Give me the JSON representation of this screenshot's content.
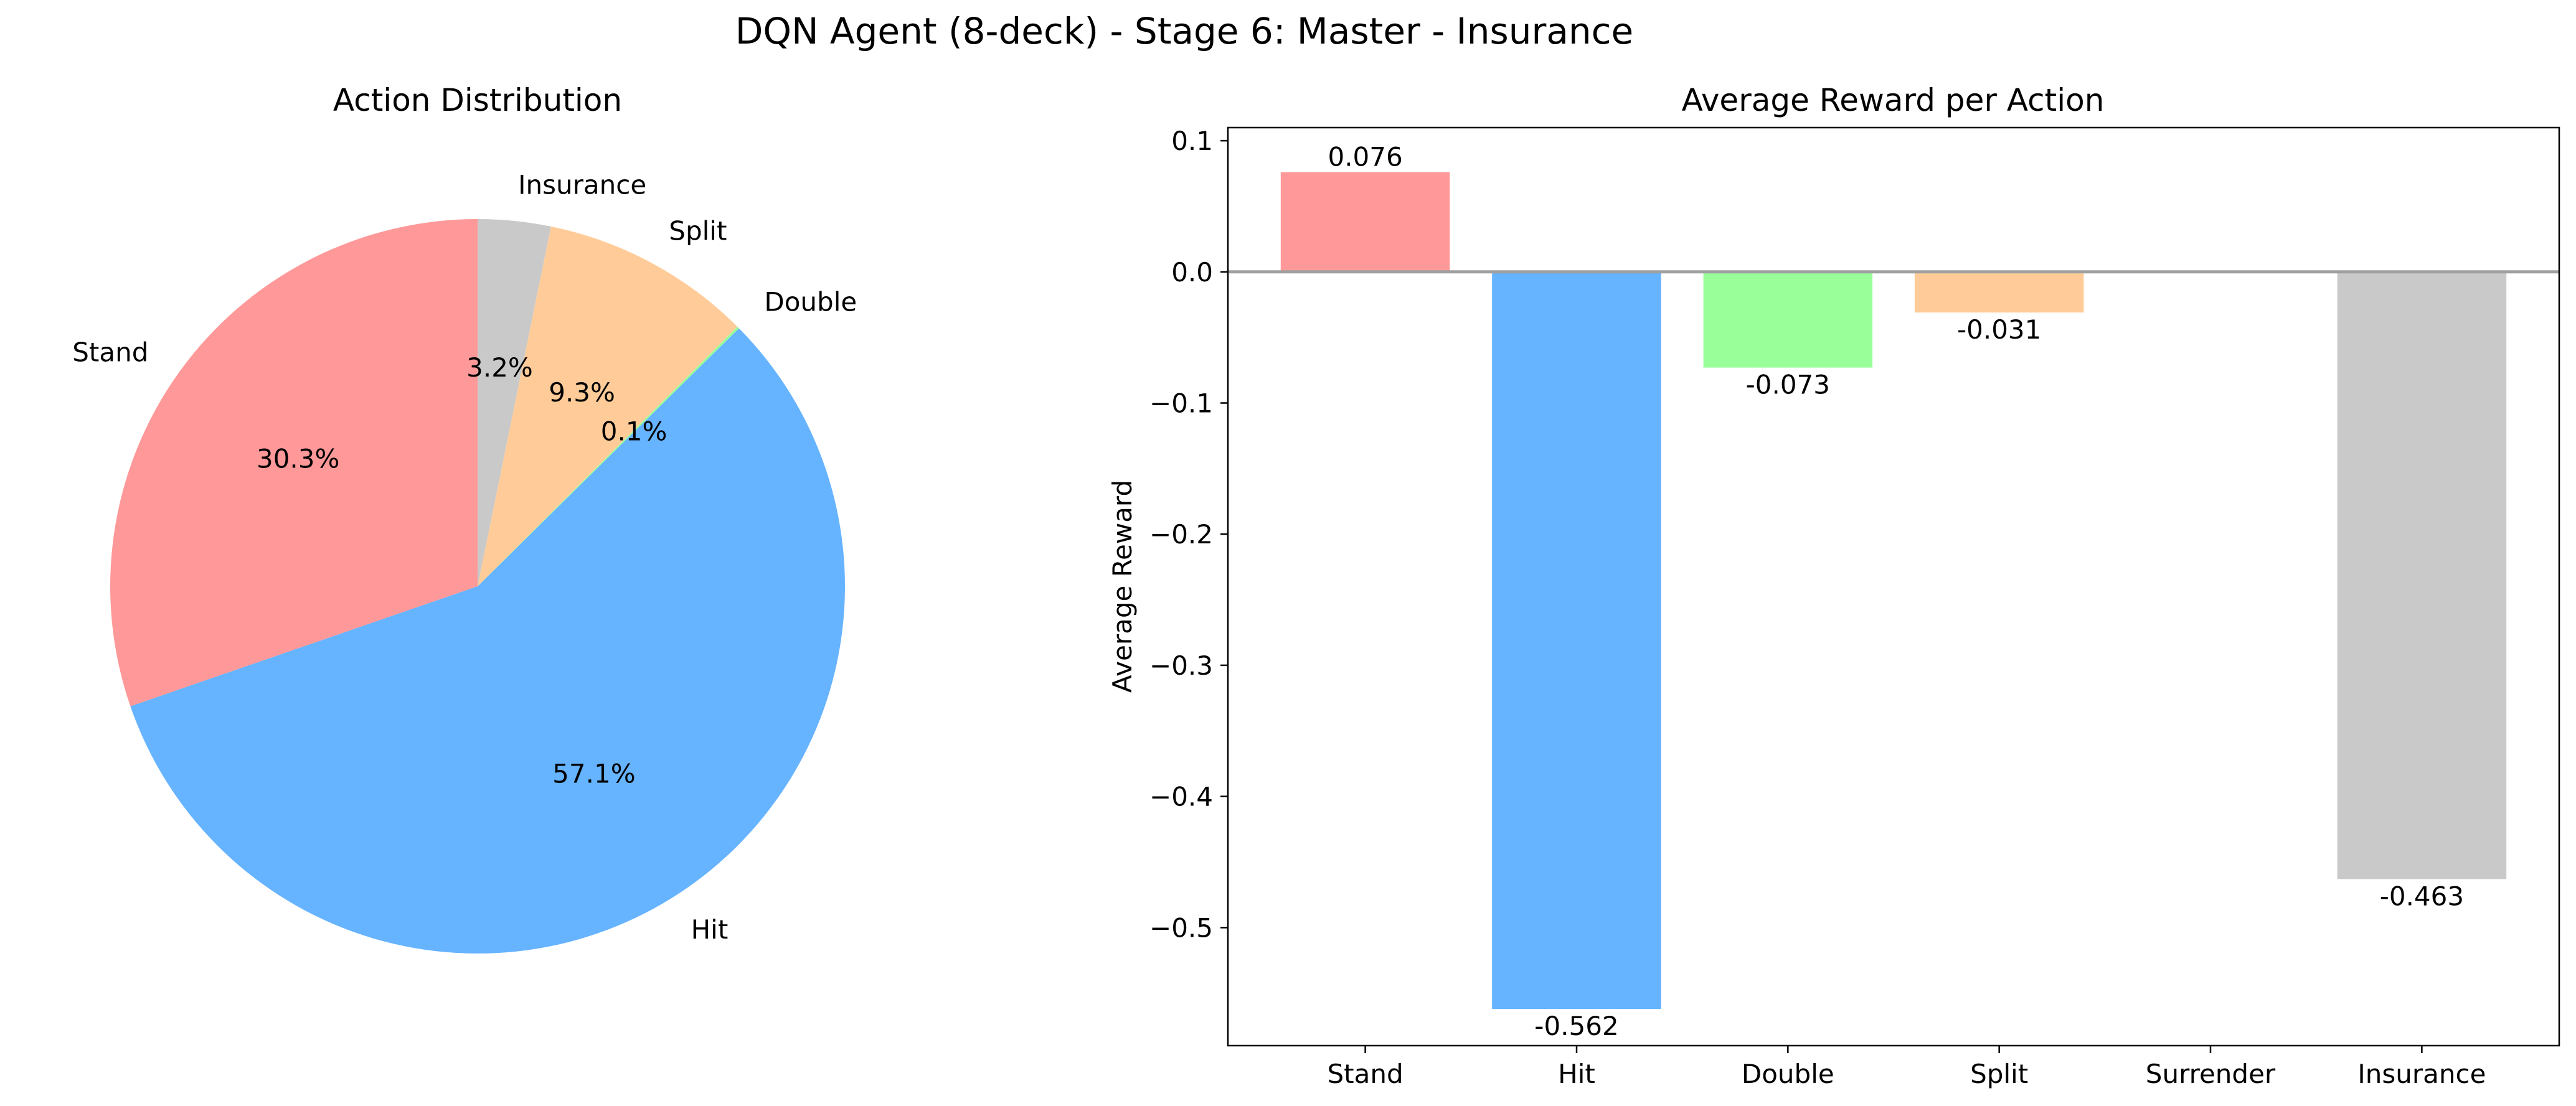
{
  "figure": {
    "suptitle": "DQN Agent (8-deck) - Stage 6: Master - Insurance"
  },
  "chart_data": [
    {
      "type": "pie",
      "title": "Action Distribution",
      "start_angle_deg": 90,
      "direction": "counterclockwise",
      "slices": [
        {
          "label": "Stand",
          "value": 30.3,
          "pct_label": "30.3%",
          "color": "#ff9999"
        },
        {
          "label": "Hit",
          "value": 57.1,
          "pct_label": "57.1%",
          "color": "#66b3ff"
        },
        {
          "label": "Double",
          "value": 0.1,
          "pct_label": "0.1%",
          "color": "#99ff99"
        },
        {
          "label": "Split",
          "value": 9.3,
          "pct_label": "9.3%",
          "color": "#ffcc99"
        },
        {
          "label": "Insurance",
          "value": 3.2,
          "pct_label": "3.2%",
          "color": "#c9c9c9"
        }
      ]
    },
    {
      "type": "bar",
      "title": "Average Reward per Action",
      "xlabel": "",
      "ylabel": "Average Reward",
      "categories": [
        "Stand",
        "Hit",
        "Double",
        "Split",
        "Surrender",
        "Insurance"
      ],
      "values": [
        0.076,
        -0.562,
        -0.073,
        -0.031,
        null,
        -0.463
      ],
      "value_labels": [
        "0.076",
        "-0.562",
        "-0.073",
        "-0.031",
        "",
        "-0.463"
      ],
      "colors": [
        "#ff9999",
        "#66b3ff",
        "#99ff99",
        "#ffcc99",
        "#ffffff",
        "#c9c9c9"
      ],
      "ylim": [
        -0.59,
        0.11
      ],
      "yticks": [
        0.1,
        0.0,
        -0.1,
        -0.2,
        -0.3,
        -0.4,
        -0.5
      ],
      "ytick_labels": [
        "0.1",
        "0.0",
        "−0.1",
        "−0.2",
        "−0.3",
        "−0.4",
        "−0.5"
      ],
      "zero_line": true,
      "grid": false
    }
  ]
}
